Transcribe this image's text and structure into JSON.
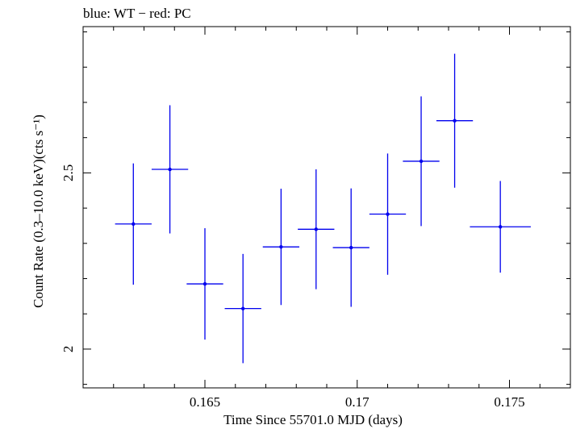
{
  "chart_data": {
    "type": "scatter",
    "title": "blue: WT − red: PC",
    "xlabel": "Time Since 55701.0 MJD (days)",
    "ylabel": "Count Rate (0.3–10.0 keV)(cts s⁻¹)",
    "xlim": [
      0.161,
      0.177
    ],
    "ylim": [
      1.89,
      2.915
    ],
    "xticks": [
      0.165,
      0.17,
      0.175
    ],
    "xtick_labels": [
      "0.165",
      "0.17",
      "0.175"
    ],
    "yticks": [
      2.0,
      2.5
    ],
    "ytick_labels": [
      "2",
      "2.5"
    ],
    "grid": false,
    "series": [
      {
        "color": "#0000ee",
        "points": [
          {
            "x": 0.16265,
            "xerr": 0.0006,
            "y": 2.355,
            "yerr": 0.172
          },
          {
            "x": 0.16385,
            "xerr": 0.0006,
            "y": 2.51,
            "yerr": 0.182
          },
          {
            "x": 0.165,
            "xerr": 0.0006,
            "y": 2.185,
            "yerr": 0.158
          },
          {
            "x": 0.16625,
            "xerr": 0.0006,
            "y": 2.115,
            "yerr": 0.155
          },
          {
            "x": 0.1675,
            "xerr": 0.0006,
            "y": 2.29,
            "yerr": 0.165
          },
          {
            "x": 0.16865,
            "xerr": 0.0006,
            "y": 2.34,
            "yerr": 0.17
          },
          {
            "x": 0.1698,
            "xerr": 0.0006,
            "y": 2.288,
            "yerr": 0.168
          },
          {
            "x": 0.171,
            "xerr": 0.0006,
            "y": 2.383,
            "yerr": 0.172
          },
          {
            "x": 0.1721,
            "xerr": 0.0006,
            "y": 2.533,
            "yerr": 0.184
          },
          {
            "x": 0.1732,
            "xerr": 0.0006,
            "y": 2.648,
            "yerr": 0.19
          },
          {
            "x": 0.1747,
            "xerr": 0.001,
            "y": 2.347,
            "yerr": 0.13
          }
        ]
      }
    ]
  }
}
